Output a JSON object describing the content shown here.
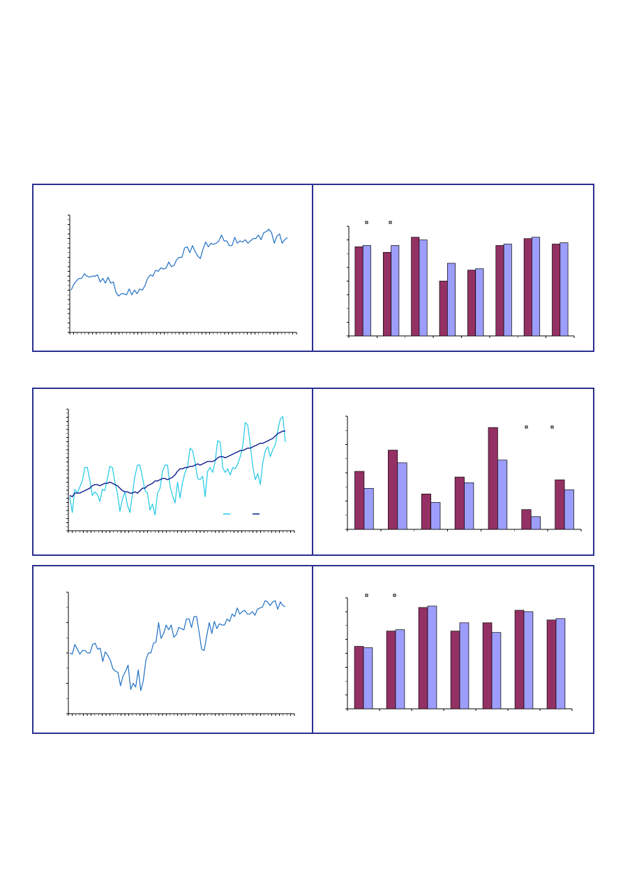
{
  "colors": {
    "frame": "#2a2f8f",
    "line_main": "#1f6fc4",
    "line_light": "#1ec8e8",
    "line_dark": "#0a1a8c",
    "bar_a": "#943164",
    "bar_b": "#9d9dfb"
  },
  "chart_data": [
    {
      "type": "line",
      "title": "",
      "xlabel": "",
      "ylabel": "",
      "grid": false,
      "ylim": [
        0,
        100
      ],
      "series": [
        {
          "values": [
            36,
            41,
            44,
            46,
            46,
            50,
            48,
            47,
            48,
            48,
            49,
            43,
            46,
            42,
            47,
            42,
            43,
            34,
            31,
            33,
            33,
            32,
            37,
            32,
            36,
            33,
            37,
            36,
            40,
            46,
            49,
            48,
            53,
            52,
            55,
            54,
            55,
            60,
            56,
            57,
            62,
            64,
            64,
            72,
            73,
            68,
            74,
            69,
            65,
            63,
            71,
            77,
            73,
            76,
            75,
            76,
            78,
            83,
            78,
            78,
            74,
            74,
            81,
            76,
            78,
            77,
            79,
            76,
            78,
            80,
            80,
            83,
            79,
            85,
            86,
            88,
            85,
            76,
            82,
            84,
            76,
            79,
            81
          ]
        }
      ]
    },
    {
      "type": "bar",
      "title": "",
      "xlabel": "",
      "ylabel": "",
      "grid": false,
      "ylim": [
        0,
        80
      ],
      "legend": "top-left",
      "categories": [
        "",
        "",
        "",
        "",
        "",
        "",
        "",
        ""
      ],
      "series": [
        {
          "values": [
            65,
            61,
            72,
            40,
            48,
            66,
            71,
            67
          ]
        },
        {
          "values": [
            66,
            66,
            70,
            53,
            49,
            67,
            72,
            68
          ]
        }
      ]
    },
    {
      "type": "line",
      "title": "",
      "xlabel": "",
      "ylabel": "",
      "grid": false,
      "ylim": [
        0,
        100
      ],
      "legend": "bottom-right",
      "series": [
        {
          "values": [
            28,
            15,
            34,
            31,
            36,
            41,
            52,
            52,
            42,
            29,
            32,
            30,
            24,
            34,
            33,
            43,
            53,
            52,
            40,
            31,
            16,
            26,
            32,
            21,
            15,
            30,
            45,
            54,
            54,
            44,
            33,
            31,
            17,
            22,
            13,
            31,
            35,
            49,
            54,
            54,
            37,
            29,
            23,
            40,
            27,
            40,
            48,
            53,
            68,
            66,
            56,
            43,
            42,
            45,
            28,
            49,
            52,
            48,
            57,
            74,
            73,
            52,
            48,
            51,
            46,
            52,
            51,
            55,
            61,
            70,
            89,
            87,
            71,
            53,
            42,
            47,
            38,
            56,
            66,
            69,
            61,
            67,
            71,
            83,
            92,
            94,
            73
          ]
        },
        {
          "values": [
            29,
            28,
            31,
            31,
            31,
            32,
            33,
            34,
            35,
            37,
            38,
            38,
            37,
            38,
            39,
            39,
            40,
            39,
            38,
            37,
            35,
            33,
            32,
            32,
            31,
            31,
            32,
            31,
            33,
            35,
            35,
            37,
            38,
            39,
            41,
            41,
            42,
            43,
            43,
            42,
            43,
            44,
            46,
            49,
            51,
            51,
            52,
            52,
            53,
            53,
            54,
            55,
            54,
            55,
            56,
            57,
            57,
            57,
            58,
            60,
            61,
            61,
            60,
            61,
            62,
            63,
            64,
            65,
            66,
            66,
            67,
            68,
            68,
            69,
            70,
            71,
            72,
            72,
            73,
            74,
            75,
            76,
            78,
            80,
            81,
            82,
            82
          ]
        }
      ]
    },
    {
      "type": "bar",
      "title": "",
      "xlabel": "",
      "ylabel": "",
      "grid": false,
      "ylim": [
        0,
        80
      ],
      "legend": "top-right",
      "categories": [
        "",
        "",
        "",
        "",
        "",
        "",
        ""
      ],
      "series": [
        {
          "values": [
            41,
            56,
            25,
            37,
            72,
            14,
            35
          ]
        },
        {
          "values": [
            29,
            47,
            19,
            33,
            49,
            9,
            28
          ]
        }
      ]
    },
    {
      "type": "line",
      "title": "",
      "xlabel": "",
      "ylabel": "",
      "grid": false,
      "ylim": [
        0,
        100
      ],
      "series": [
        {
          "values": [
            50,
            49,
            57,
            53,
            49,
            52,
            52,
            50,
            50,
            57,
            58,
            53,
            54,
            43,
            51,
            48,
            44,
            37,
            35,
            34,
            23,
            31,
            35,
            40,
            20,
            25,
            22,
            36,
            19,
            27,
            44,
            50,
            50,
            58,
            59,
            75,
            62,
            66,
            73,
            69,
            73,
            63,
            65,
            71,
            70,
            69,
            78,
            78,
            71,
            80,
            80,
            67,
            53,
            52,
            64,
            75,
            66,
            76,
            70,
            74,
            73,
            73,
            78,
            76,
            82,
            80,
            87,
            82,
            84,
            85,
            82,
            82,
            84,
            81,
            86,
            87,
            88,
            93,
            92,
            89,
            92,
            93,
            86,
            92,
            89,
            88
          ]
        }
      ]
    },
    {
      "type": "bar",
      "title": "",
      "xlabel": "",
      "ylabel": "",
      "grid": false,
      "ylim": [
        0,
        80
      ],
      "legend": "top-left",
      "categories": [
        "",
        "",
        "",
        "",
        "",
        "",
        ""
      ],
      "series": [
        {
          "values": [
            45,
            56,
            73,
            56,
            62,
            71,
            64
          ]
        },
        {
          "values": [
            44,
            57,
            74,
            62,
            55,
            70,
            65
          ]
        }
      ]
    }
  ]
}
